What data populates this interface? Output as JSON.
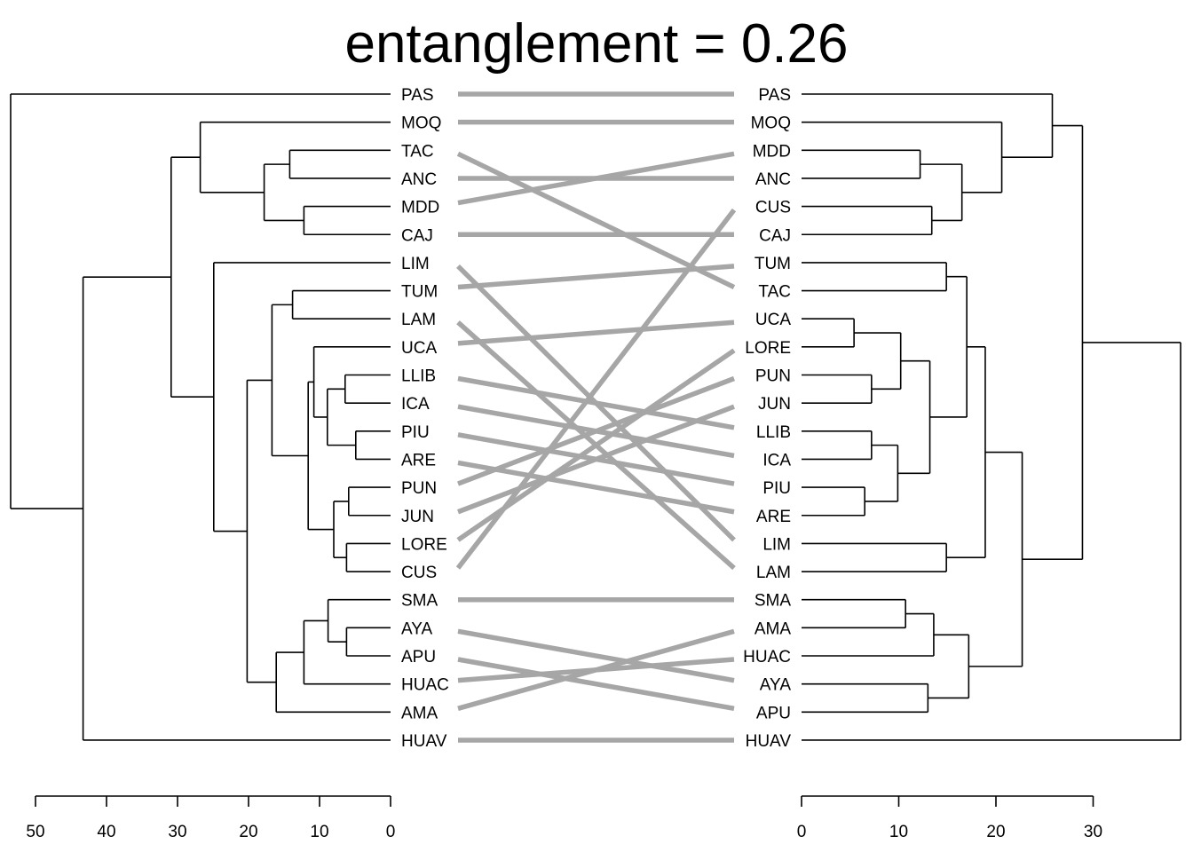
{
  "title": "entanglement = 0.26",
  "chart_data": {
    "type": "tanglegram",
    "title": "entanglement = 0.26",
    "line_color": "#a6a6a6",
    "left_leaves": [
      "PAS",
      "MOQ",
      "TAC",
      "ANC",
      "MDD",
      "CAJ",
      "LIM",
      "TUM",
      "LAM",
      "UCA",
      "LLIB",
      "ICA",
      "PIU",
      "ARE",
      "PUN",
      "JUN",
      "LORE",
      "CUS",
      "SMA",
      "AYA",
      "APU",
      "HUAC",
      "AMA",
      "HUAV"
    ],
    "right_leaves": [
      "PAS",
      "MOQ",
      "MDD",
      "ANC",
      "CUS",
      "CAJ",
      "TUM",
      "TAC",
      "UCA",
      "LORE",
      "PUN",
      "JUN",
      "LLIB",
      "ICA",
      "PIU",
      "ARE",
      "LIM",
      "LAM",
      "SMA",
      "AMA",
      "HUAC",
      "AYA",
      "APU",
      "HUAV"
    ],
    "left_axis": {
      "range": [
        0,
        50
      ],
      "ticks": [
        50,
        40,
        30,
        20,
        10,
        0
      ]
    },
    "right_axis": {
      "range": [
        0,
        30
      ],
      "ticks": [
        0,
        10,
        20,
        30
      ]
    },
    "left_tree": {
      "h": 53.5,
      "c": [
        {
          "l": "PAS"
        },
        {
          "h": 43.3,
          "c": [
            {
              "h": 30.9,
              "c": [
                {
                  "h": 26.8,
                  "c": [
                    {
                      "l": "MOQ"
                    },
                    {
                      "h": 17.8,
                      "c": [
                        {
                          "h": 14.2,
                          "c": [
                            {
                              "l": "TAC"
                            },
                            {
                              "l": "ANC"
                            }
                          ]
                        },
                        {
                          "h": 12.2,
                          "c": [
                            {
                              "l": "MDD"
                            },
                            {
                              "l": "CAJ"
                            }
                          ]
                        }
                      ]
                    }
                  ]
                },
                {
                  "h": 24.9,
                  "c": [
                    {
                      "l": "LIM"
                    },
                    {
                      "h": 20.2,
                      "c": [
                        {
                          "h": 16.7,
                          "c": [
                            {
                              "h": 13.8,
                              "c": [
                                {
                                  "l": "TUM"
                                },
                                {
                                  "l": "LAM"
                                }
                              ]
                            },
                            {
                              "h": 11.6,
                              "c": [
                                {
                                  "h": 10.8,
                                  "c": [
                                    {
                                      "l": "UCA"
                                    },
                                    {
                                      "h": 8.9,
                                      "c": [
                                        {
                                          "h": 6.4,
                                          "c": [
                                            {
                                              "l": "LLIB"
                                            },
                                            {
                                              "l": "ICA"
                                            }
                                          ]
                                        },
                                        {
                                          "h": 4.9,
                                          "c": [
                                            {
                                              "l": "PIU"
                                            },
                                            {
                                              "l": "ARE"
                                            }
                                          ]
                                        }
                                      ]
                                    }
                                  ]
                                },
                                {
                                  "h": 8.0,
                                  "c": [
                                    {
                                      "h": 5.9,
                                      "c": [
                                        {
                                          "l": "PUN"
                                        },
                                        {
                                          "l": "JUN"
                                        }
                                      ]
                                    },
                                    {
                                      "h": 6.2,
                                      "c": [
                                        {
                                          "l": "LORE"
                                        },
                                        {
                                          "l": "CUS"
                                        }
                                      ]
                                    }
                                  ]
                                }
                              ]
                            }
                          ]
                        },
                        {
                          "h": 16.1,
                          "c": [
                            {
                              "h": 12.2,
                              "c": [
                                {
                                  "h": 8.8,
                                  "c": [
                                    {
                                      "l": "SMA"
                                    },
                                    {
                                      "h": 6.2,
                                      "c": [
                                        {
                                          "l": "AYA"
                                        },
                                        {
                                          "l": "APU"
                                        }
                                      ]
                                    }
                                  ]
                                },
                                {
                                  "l": "HUAC"
                                }
                              ]
                            },
                            {
                              "l": "AMA"
                            }
                          ]
                        }
                      ]
                    }
                  ]
                }
              ]
            },
            {
              "l": "HUAV"
            }
          ]
        }
      ]
    },
    "right_tree": {
      "h": 39.0,
      "c": [
        {
          "h": 28.9,
          "c": [
            {
              "h": 25.8,
              "c": [
                {
                  "l": "PAS"
                },
                {
                  "h": 20.6,
                  "c": [
                    {
                      "l": "MOQ"
                    },
                    {
                      "h": 16.5,
                      "c": [
                        {
                          "h": 12.2,
                          "c": [
                            {
                              "l": "MDD"
                            },
                            {
                              "l": "ANC"
                            }
                          ]
                        },
                        {
                          "h": 13.4,
                          "c": [
                            {
                              "l": "CUS"
                            },
                            {
                              "l": "CAJ"
                            }
                          ]
                        }
                      ]
                    }
                  ]
                }
              ]
            },
            {
              "h": 22.7,
              "c": [
                {
                  "h": 18.9,
                  "c": [
                    {
                      "h": 17.0,
                      "c": [
                        {
                          "h": 14.9,
                          "c": [
                            {
                              "l": "TUM"
                            },
                            {
                              "l": "TAC"
                            }
                          ]
                        },
                        {
                          "h": 13.2,
                          "c": [
                            {
                              "h": 10.2,
                              "c": [
                                {
                                  "h": 5.4,
                                  "c": [
                                    {
                                      "l": "UCA"
                                    },
                                    {
                                      "l": "LORE"
                                    }
                                  ]
                                },
                                {
                                  "h": 7.2,
                                  "c": [
                                    {
                                      "l": "PUN"
                                    },
                                    {
                                      "l": "JUN"
                                    }
                                  ]
                                }
                              ]
                            },
                            {
                              "h": 9.9,
                              "c": [
                                {
                                  "h": 7.2,
                                  "c": [
                                    {
                                      "l": "LLIB"
                                    },
                                    {
                                      "l": "ICA"
                                    }
                                  ]
                                },
                                {
                                  "h": 6.5,
                                  "c": [
                                    {
                                      "l": "PIU"
                                    },
                                    {
                                      "l": "ARE"
                                    }
                                  ]
                                }
                              ]
                            }
                          ]
                        }
                      ]
                    },
                    {
                      "h": 14.9,
                      "c": [
                        {
                          "l": "LIM"
                        },
                        {
                          "l": "LAM"
                        }
                      ]
                    }
                  ]
                },
                {
                  "h": 17.2,
                  "c": [
                    {
                      "h": 13.6,
                      "c": [
                        {
                          "h": 10.7,
                          "c": [
                            {
                              "l": "SMA"
                            },
                            {
                              "l": "AMA"
                            }
                          ]
                        },
                        {
                          "l": "HUAC"
                        }
                      ]
                    },
                    {
                      "h": 13.0,
                      "c": [
                        {
                          "l": "AYA"
                        },
                        {
                          "l": "APU"
                        }
                      ]
                    }
                  ]
                }
              ]
            }
          ]
        },
        {
          "l": "HUAV"
        }
      ]
    }
  }
}
